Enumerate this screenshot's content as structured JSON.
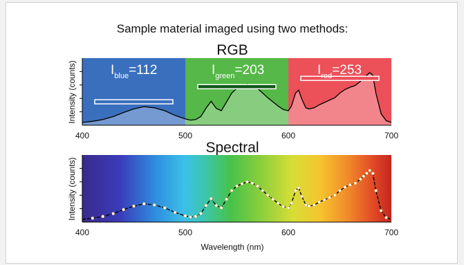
{
  "title": "Sample material imaged using two methods:",
  "colors": {
    "blue": "#3a6fbe",
    "green": "#55b848",
    "red": "#ec5059",
    "curve": "#000000",
    "band_outline": "#ffffff"
  },
  "rgb_panel": {
    "title": "RGB",
    "ylabel": "Intensity (counts)",
    "x_ticks": [
      "400",
      "500",
      "600",
      "700"
    ],
    "channels": [
      {
        "label_main": "I",
        "label_sub": "blue",
        "label_value": "=112",
        "range": [
          400,
          500
        ],
        "value": 112
      },
      {
        "label_main": "I",
        "label_sub": "green",
        "label_value": "=203",
        "range": [
          500,
          600
        ],
        "value": 203
      },
      {
        "label_main": "I",
        "label_sub": "red",
        "label_value": "=253",
        "range": [
          600,
          700
        ],
        "value": 253
      }
    ]
  },
  "spectral_panel": {
    "title": "Spectral",
    "ylabel": "Intensity (counts)",
    "xlabel": "Wavelength (nm)",
    "x_ticks": [
      "400",
      "500",
      "600",
      "700"
    ]
  },
  "chart_data": {
    "type": "line",
    "xlim": [
      400,
      700
    ],
    "ylim": [
      0,
      1
    ],
    "x": [
      400,
      410,
      420,
      430,
      440,
      450,
      460,
      470,
      480,
      490,
      500,
      505,
      510,
      515,
      520,
      525,
      530,
      535,
      540,
      545,
      550,
      555,
      560,
      565,
      570,
      575,
      580,
      585,
      590,
      595,
      600,
      603,
      607,
      610,
      613,
      617,
      620,
      625,
      630,
      635,
      640,
      645,
      650,
      655,
      660,
      665,
      670,
      673,
      676,
      679,
      682,
      685,
      690,
      695,
      700
    ],
    "series": [
      {
        "values": [
          0.0,
          0.02,
          0.05,
          0.1,
          0.17,
          0.23,
          0.27,
          0.25,
          0.2,
          0.12,
          0.06,
          0.04,
          0.05,
          0.1,
          0.24,
          0.36,
          0.24,
          0.2,
          0.35,
          0.5,
          0.58,
          0.62,
          0.65,
          0.63,
          0.58,
          0.5,
          0.42,
          0.35,
          0.28,
          0.22,
          0.2,
          0.28,
          0.5,
          0.55,
          0.4,
          0.25,
          0.23,
          0.25,
          0.3,
          0.34,
          0.38,
          0.42,
          0.5,
          0.56,
          0.6,
          0.63,
          0.7,
          0.75,
          0.8,
          0.85,
          0.8,
          0.5,
          0.15,
          0.03,
          0.0
        ]
      }
    ]
  }
}
